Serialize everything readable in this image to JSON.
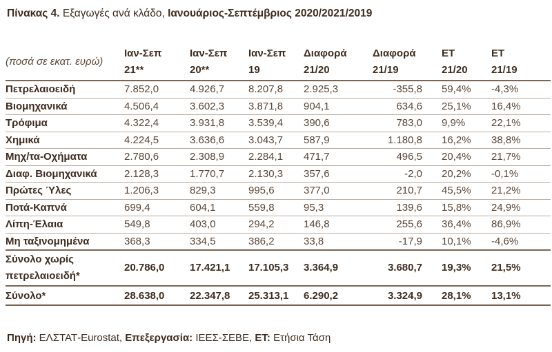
{
  "title": {
    "bold": "Πίνακας 4.",
    "normal": " Εξαγωγές ανά κλάδο, ",
    "bold2": "Ιανουάριος-Σεπτέμβριος 2020/2021/2019"
  },
  "header": {
    "unit": "(ποσά σε εκατ. ευρώ)",
    "cols": [
      [
        "Ιαν-Σεπ",
        "21**"
      ],
      [
        "Ιαν-Σεπ",
        "20**"
      ],
      [
        "Ιαν-Σεπ",
        "19"
      ],
      [
        "Διαφορά",
        "21/20"
      ],
      [
        "Διαφορά",
        "21/19"
      ],
      [
        "ΕΤ",
        "21/20"
      ],
      [
        "ΕΤ",
        "21/19"
      ]
    ]
  },
  "rows": [
    [
      "Πετρελαιοειδή",
      "7.852,0",
      "4.926,7",
      "8.207,8",
      "2.925,3",
      "-355,8",
      "59,4%",
      "-4,3%"
    ],
    [
      "Βιομηχανικά",
      "4.506,4",
      "3.602,3",
      "3.871,8",
      "904,1",
      "634,6",
      "25,1%",
      "16,4%"
    ],
    [
      "Τρόφιμα",
      "4.322,4",
      "3.931,8",
      "3.539,4",
      "390,6",
      "783,0",
      "9,9%",
      "22,1%"
    ],
    [
      "Χημικά",
      "4.224,5",
      "3.636,6",
      "3.043,7",
      "587,9",
      "1.180,8",
      "16,2%",
      "38,8%"
    ],
    [
      "Μηχ/τα-Οχήματα",
      "2.780,6",
      "2.308,9",
      "2.284,1",
      "471,7",
      "496,5",
      "20,4%",
      "21,7%"
    ],
    [
      "Διαφ. Βιομηχανικά",
      "2.128,3",
      "1.770,7",
      "2.130,3",
      "357,6",
      "-2,0",
      "20,2%",
      "-0,1%"
    ],
    [
      "Πρώτες Ύλες",
      "1.206,3",
      "829,3",
      "995,6",
      "377,0",
      "210,7",
      "45,5%",
      "21,2%"
    ],
    [
      "Ποτά-Καπνά",
      "699,4",
      "604,1",
      "559,8",
      "95,3",
      "139,6",
      "15,8%",
      "24,9%"
    ],
    [
      "Λίπη-Έλαια",
      "549,8",
      "403,0",
      "294,2",
      "146,8",
      "255,6",
      "36,4%",
      "86,9%"
    ],
    [
      "Μη ταξινομημένα",
      "368,3",
      "334,5",
      "386,2",
      "33,8",
      "-17,9",
      "10,1%",
      "-4,6%"
    ]
  ],
  "subtotal": [
    "Σύνολο χωρίς",
    "πετρελαιοειδή*",
    "20.786,0",
    "17.421,1",
    "17.105,3",
    "3.364,9",
    "3.680,7",
    "19,3%",
    "21,5%"
  ],
  "total": [
    "Σύνολο*",
    "28.638,0",
    "22.347,8",
    "25.313,1",
    "6.290,2",
    "3.324,9",
    "28,1%",
    "13,1%"
  ],
  "footer": {
    "k1": "Πηγή:",
    "v1": " ΕΛΣΤΑΤ-Eurostat, ",
    "k2": "Επεξεργασία:",
    "v2": " ΙΕΕΣ-ΣΕΒΕ, ",
    "k3": "ΕΤ:",
    "v3": " Ετήσια Τάση"
  }
}
